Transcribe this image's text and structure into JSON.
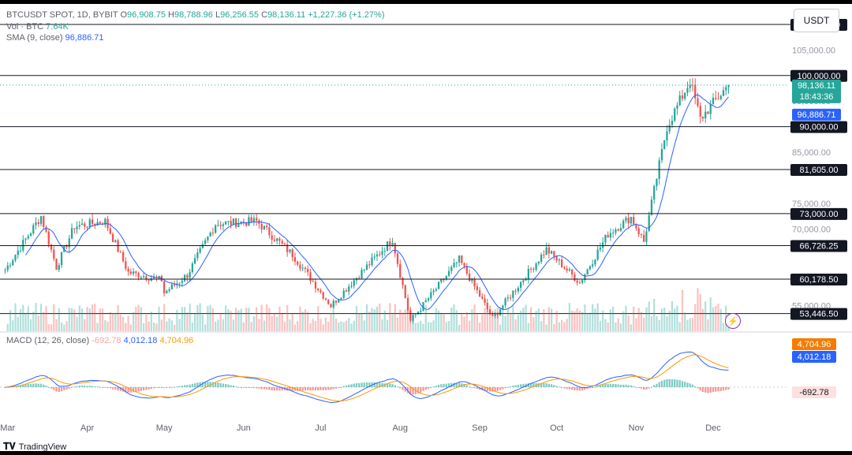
{
  "legend": {
    "symbol": "BTCUSDT SPOT, 1D, BYBIT",
    "open": "96,908.75",
    "high": "98,788.96",
    "low": "96,256.55",
    "close": "98,136.11",
    "change": "+1,227.36 (+1.27%)",
    "vol_label": "Vol · BTC",
    "vol_value": "7.64K",
    "sma_label": "SMA (9, close)",
    "sma_value": "96,886.71",
    "macd_label": "MACD (12, 26, close)",
    "macd_hist": "-692.78",
    "macd_line": "4,012.18",
    "macd_signal": "4,704.96"
  },
  "ui": {
    "currency": "USDT",
    "brand": "TradingView"
  },
  "chart_data": {
    "type": "candlestick",
    "symbol": "BTCUSDT",
    "timeframe": "1D",
    "price_axis_ticks": [
      "105,000.00",
      "95,000.00",
      "85,000.00",
      "75,000.00",
      "70,000.00",
      "55,000.00"
    ],
    "price_range": [
      50000,
      114000
    ],
    "x_months": [
      "Mar",
      "Apr",
      "May",
      "Jun",
      "Jul",
      "Aug",
      "Sep",
      "Oct",
      "Nov",
      "Dec"
    ],
    "horizontal_levels": [
      "110,000.00",
      "100,000.00",
      "90,000.00",
      "81,605.00",
      "73,000.00",
      "66,726.25",
      "60,178.50",
      "53,446.50"
    ],
    "last_price_label": "98,136.11",
    "countdown_label": "18:43:36",
    "sma_label_value": "96,886.71",
    "macd_axis_labels": {
      "signal": "4,704.96",
      "macd": "4,012.18",
      "histogram": "-692.78"
    },
    "anchors": [
      [
        "2024-02-29",
        62000
      ],
      [
        "2024-03-14",
        72500
      ],
      [
        "2024-03-20",
        62500
      ],
      [
        "2024-03-27",
        70500
      ],
      [
        "2024-04-08",
        71500
      ],
      [
        "2024-04-17",
        61500
      ],
      [
        "2024-04-30",
        60000
      ],
      [
        "2024-05-01",
        57500
      ],
      [
        "2024-05-10",
        61000
      ],
      [
        "2024-05-21",
        71000
      ],
      [
        "2024-06-06",
        71500
      ],
      [
        "2024-06-20",
        65000
      ],
      [
        "2024-07-05",
        55000
      ],
      [
        "2024-07-14",
        60000
      ],
      [
        "2024-07-29",
        68000
      ],
      [
        "2024-08-05",
        52000
      ],
      [
        "2024-08-24",
        64000
      ],
      [
        "2024-09-06",
        52500
      ],
      [
        "2024-09-27",
        66000
      ],
      [
        "2024-10-10",
        59500
      ],
      [
        "2024-10-21",
        69000
      ],
      [
        "2024-10-30",
        72300
      ],
      [
        "2024-11-04",
        67500
      ],
      [
        "2024-11-13",
        90000
      ],
      [
        "2024-11-22",
        99000
      ],
      [
        "2024-11-26",
        91500
      ],
      [
        "2024-12-05",
        97000
      ],
      [
        "2024-12-07",
        98136
      ]
    ],
    "colors": {
      "up": "#26a69a",
      "down": "#ef5350",
      "sma": "#2962ff",
      "macd": "#2962ff",
      "signal": "#ff9800"
    }
  }
}
